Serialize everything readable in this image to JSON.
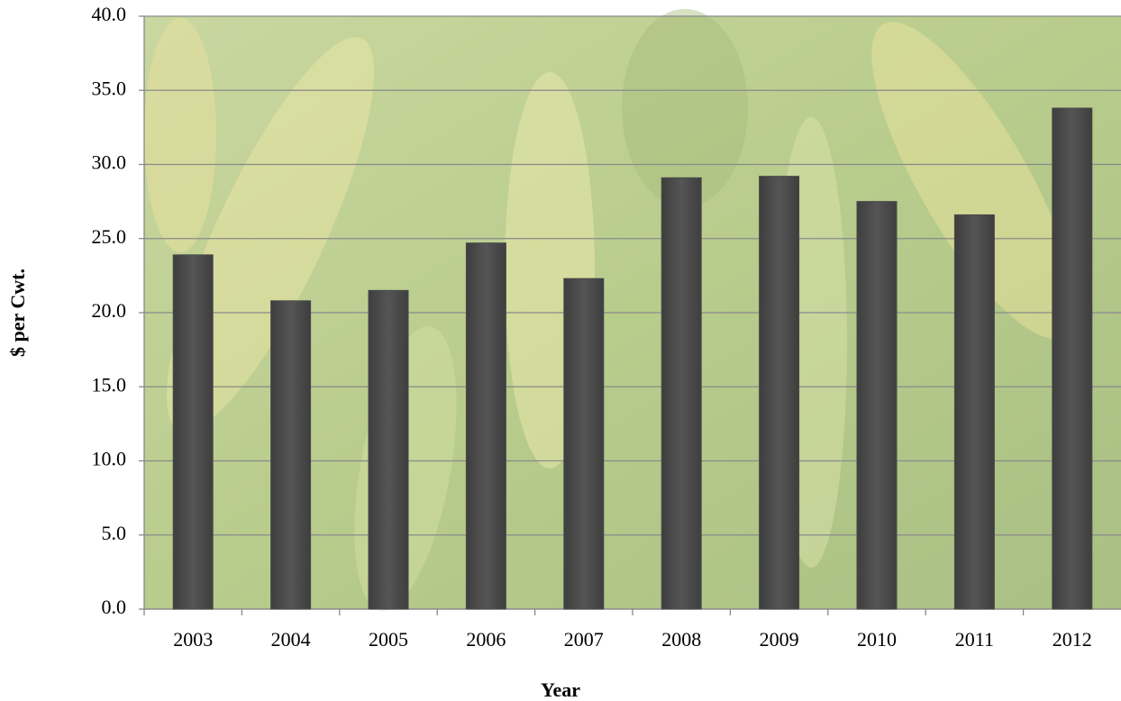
{
  "chart_data": {
    "type": "bar",
    "x_label": "Year",
    "y_label": "$ per Cwt.",
    "categories": [
      "2003",
      "2004",
      "2005",
      "2006",
      "2007",
      "2008",
      "2009",
      "2010",
      "2011",
      "2012"
    ],
    "values": [
      23.9,
      20.8,
      21.5,
      24.7,
      22.3,
      29.1,
      29.2,
      27.5,
      26.6,
      33.8
    ],
    "color": "#4a4a4a",
    "ylim": [
      0,
      40
    ],
    "yticks": [
      {
        "value": 0,
        "label": "0.0"
      },
      {
        "value": 5,
        "label": "5.0"
      },
      {
        "value": 10,
        "label": "10.0"
      },
      {
        "value": 15,
        "label": "15.0"
      },
      {
        "value": 20,
        "label": "20.0"
      },
      {
        "value": 25,
        "label": "25.0"
      },
      {
        "value": 30,
        "label": "30.0"
      },
      {
        "value": 35,
        "label": "35.0"
      },
      {
        "value": 40,
        "label": "40.0"
      }
    ],
    "grid": true
  }
}
